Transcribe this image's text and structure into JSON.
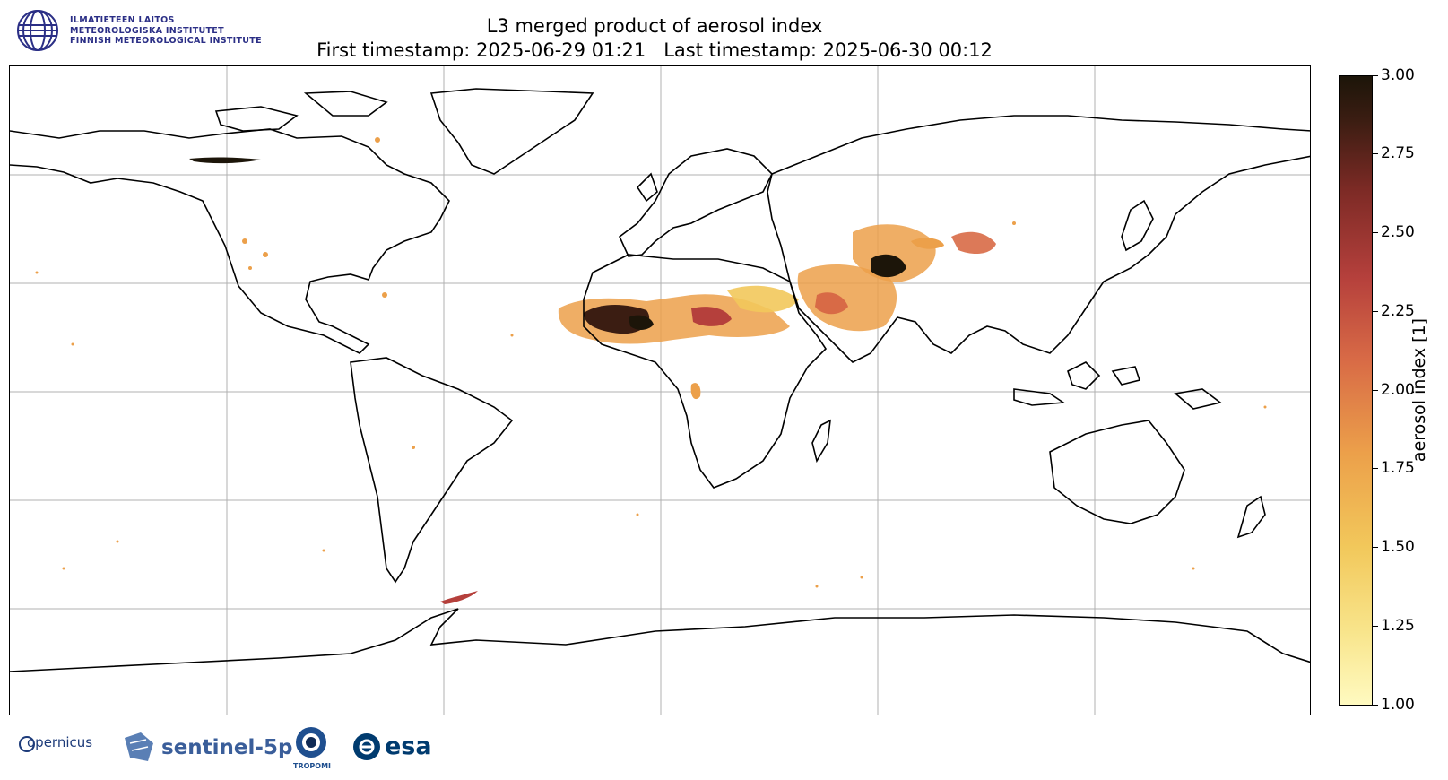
{
  "header": {
    "institute_lines": [
      "ILMATIETEEN LAITOS",
      "METEOROLOGISKA INSTITUTET",
      "FINNISH METEOROLOGICAL INSTITUTE"
    ],
    "title": "L3 merged product of aerosol index",
    "subtitle": "First timestamp: 2025-06-29 01:21   Last timestamp: 2025-06-30 00:12"
  },
  "colorbar": {
    "label": "aerosol index [1]",
    "ticks": [
      "3.00",
      "2.75",
      "2.50",
      "2.25",
      "2.00",
      "1.75",
      "1.50",
      "1.25",
      "1.00"
    ],
    "min": 1.0,
    "max": 3.0,
    "colors": [
      "#fffac0",
      "#f2c85b",
      "#eca04a",
      "#d86a46",
      "#b5403c",
      "#7c2a25",
      "#1c1509"
    ]
  },
  "map": {
    "projection": "equirectangular",
    "gridlines": true,
    "coastline_color": "#000000"
  },
  "footer_logos": {
    "copernicus": "opernicus",
    "sentinel": "sentinel-5p",
    "tropomi": "TROPOMI",
    "esa": "esa"
  }
}
